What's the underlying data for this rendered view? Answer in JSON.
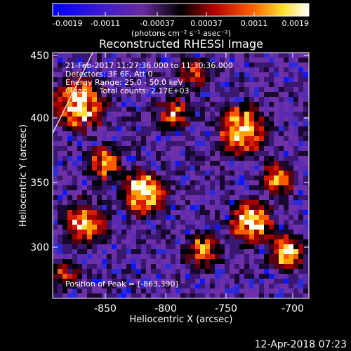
{
  "colorbar": {
    "tick_labels": [
      "-0.0019",
      "-0.0011",
      "-0.00037",
      "0.00037",
      "0.0011",
      "0.0019"
    ],
    "units": "(photons cm⁻² s⁻¹ asec⁻²)",
    "colors": {
      "low": "#0a0aff",
      "mid_low": "#6a2aa0",
      "mid": "#000000",
      "mid_high": "#b00000",
      "high": "#ffff40",
      "top": "#ffffff"
    }
  },
  "plot": {
    "title": "Reconstructed RHESSI Image",
    "xlabel": "Heliocentric X (arcsec)",
    "ylabel": "Heliocentric Y (arcsec)",
    "x_ticks": [
      "-850",
      "-800",
      "-750",
      "-700"
    ],
    "y_ticks": [
      "450",
      "400",
      "350",
      "300"
    ],
    "overlay": {
      "line1": "21-Feb-2017 11:27:36.000 to 11:30:36.000",
      "line2": "Detectors: 3F 6F, Att 0",
      "line3": "Energy Range: 25.0 - 50.0 keV",
      "line4": "Clean     Total counts: 2.17E+03",
      "peak": "Position of Peak = [-863,390]"
    }
  },
  "footer": {
    "timestamp": "12-Apr-2018 07:23"
  }
}
